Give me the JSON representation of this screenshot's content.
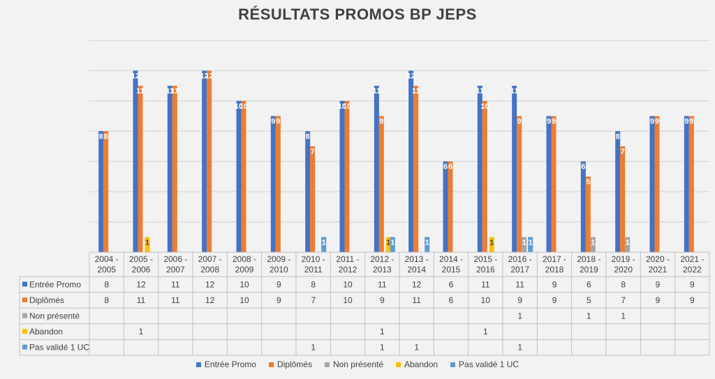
{
  "chart_data": {
    "type": "bar",
    "title": "RÉSULTATS PROMOS BP JEPS",
    "categories": [
      [
        "2004 -",
        "2005"
      ],
      [
        "2005 -",
        "2006"
      ],
      [
        "2006 -",
        "2007"
      ],
      [
        "2007 -",
        "2008"
      ],
      [
        "2008 -",
        "2009"
      ],
      [
        "2009 -",
        "2010"
      ],
      [
        "2010 -",
        "2011"
      ],
      [
        "2011 -",
        "2012"
      ],
      [
        "2012 -",
        "2013"
      ],
      [
        "2013 -",
        "2014"
      ],
      [
        "2014 -",
        "2015"
      ],
      [
        "2015 -",
        "2016"
      ],
      [
        "2016 -",
        "2017"
      ],
      [
        "2017 -",
        "2018"
      ],
      [
        "2018 -",
        "2019"
      ],
      [
        "2019 -",
        "2020"
      ],
      [
        "2020 -",
        "2021"
      ],
      [
        "2021 -",
        "2022"
      ]
    ],
    "ylim": [
      0,
      14
    ],
    "gridlines": true,
    "legend_position": "bottom",
    "series": [
      {
        "name": "Entrée Promo",
        "color": "#4472c4",
        "values": [
          8,
          12,
          11,
          12,
          10,
          9,
          8,
          10,
          11,
          12,
          6,
          11,
          11,
          9,
          6,
          8,
          9,
          9
        ]
      },
      {
        "name": "Diplômés",
        "color": "#ed7d31",
        "values": [
          8,
          11,
          11,
          12,
          10,
          9,
          7,
          10,
          9,
          11,
          6,
          10,
          9,
          9,
          5,
          7,
          9,
          9
        ]
      },
      {
        "name": "Non présenté",
        "color": "#a5a5a5",
        "values": [
          null,
          null,
          null,
          null,
          null,
          null,
          null,
          null,
          null,
          null,
          null,
          null,
          1,
          null,
          1,
          1,
          null,
          null
        ]
      },
      {
        "name": "Abandon",
        "color": "#ffc000",
        "values": [
          null,
          1,
          null,
          null,
          null,
          null,
          null,
          null,
          1,
          null,
          null,
          1,
          null,
          null,
          null,
          null,
          null,
          null
        ]
      },
      {
        "name": "Pas validé 1 UC",
        "color": "#5b9bd5",
        "values": [
          null,
          null,
          null,
          null,
          null,
          null,
          1,
          null,
          1,
          1,
          null,
          null,
          1,
          null,
          null,
          null,
          null,
          null
        ]
      }
    ]
  }
}
